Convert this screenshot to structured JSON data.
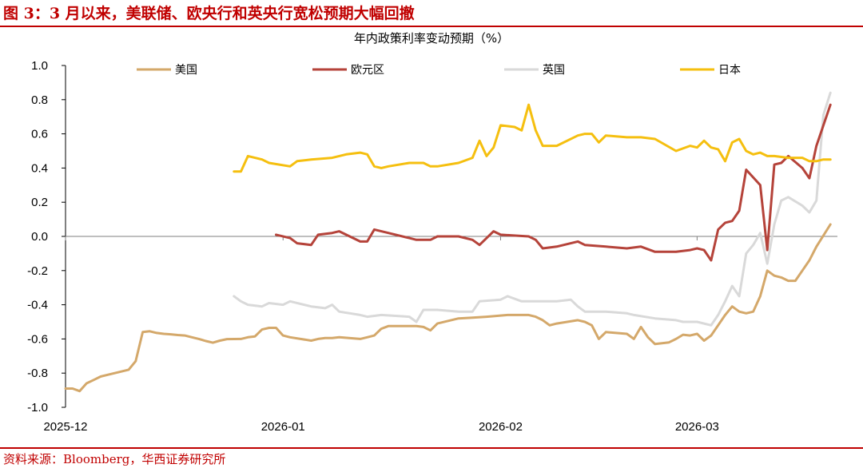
{
  "header": {
    "title": "图 3：3 月以来，美联储、欧央行和英央行宽松预期大幅回撤"
  },
  "footer": {
    "source": "资料来源：Bloomberg，华西证券研究所"
  },
  "chart_data": {
    "type": "line",
    "title": "年内政策利率变动预期（%）",
    "xlabel": "",
    "ylabel": "",
    "ylim": [
      -1.0,
      1.0
    ],
    "yticks": [
      "1.0",
      "0.8",
      "0.6",
      "0.4",
      "0.2",
      "0.0",
      "-0.2",
      "-0.4",
      "-0.6",
      "-0.8",
      "-1.0"
    ],
    "xticks": [
      {
        "label": "2025-12",
        "date": "2025-12-01"
      },
      {
        "label": "2026-01",
        "date": "2026-01-01"
      },
      {
        "label": "2026-02",
        "date": "2026-02-01"
      },
      {
        "label": "2026-03",
        "date": "2026-03-01"
      }
    ],
    "xrange": [
      "2025-12-01",
      "2026-03-21"
    ],
    "grid": false,
    "legend": "top",
    "series": [
      {
        "name": "美国",
        "color": "#d4a86a",
        "points": [
          [
            "2025-12-01",
            -0.89
          ],
          [
            "2025-12-02",
            -0.89
          ],
          [
            "2025-12-03",
            -0.905
          ],
          [
            "2025-12-04",
            -0.86
          ],
          [
            "2025-12-05",
            -0.84
          ],
          [
            "2025-12-06",
            -0.82
          ],
          [
            "2025-12-07",
            -0.81
          ],
          [
            "2025-12-08",
            -0.8
          ],
          [
            "2025-12-09",
            -0.79
          ],
          [
            "2025-12-10",
            -0.78
          ],
          [
            "2025-12-11",
            -0.73
          ],
          [
            "2025-12-12",
            -0.56
          ],
          [
            "2025-12-13",
            -0.555
          ],
          [
            "2025-12-14",
            -0.565
          ],
          [
            "2025-12-15",
            -0.57
          ],
          [
            "2025-12-16",
            -0.573
          ],
          [
            "2025-12-17",
            -0.577
          ],
          [
            "2025-12-18",
            -0.58
          ],
          [
            "2025-12-19",
            -0.59
          ],
          [
            "2025-12-20",
            -0.6
          ],
          [
            "2025-12-21",
            -0.612
          ],
          [
            "2025-12-22",
            -0.622
          ],
          [
            "2025-12-23",
            -0.61
          ],
          [
            "2025-12-24",
            -0.601
          ],
          [
            "2025-12-26",
            -0.6
          ],
          [
            "2025-12-27",
            -0.59
          ],
          [
            "2025-12-28",
            -0.585
          ],
          [
            "2025-12-29",
            -0.545
          ],
          [
            "2025-12-30",
            -0.535
          ],
          [
            "2025-12-31",
            -0.535
          ],
          [
            "2026-01-01",
            -0.58
          ],
          [
            "2026-01-02",
            -0.59
          ],
          [
            "2026-01-05",
            -0.61
          ],
          [
            "2026-01-06",
            -0.6
          ],
          [
            "2026-01-07",
            -0.595
          ],
          [
            "2026-01-08",
            -0.595
          ],
          [
            "2026-01-09",
            -0.59
          ],
          [
            "2026-01-12",
            -0.6
          ],
          [
            "2026-01-13",
            -0.59
          ],
          [
            "2026-01-14",
            -0.58
          ],
          [
            "2026-01-15",
            -0.54
          ],
          [
            "2026-01-16",
            -0.525
          ],
          [
            "2026-01-20",
            -0.525
          ],
          [
            "2026-01-21",
            -0.53
          ],
          [
            "2026-01-22",
            -0.55
          ],
          [
            "2026-01-23",
            -0.51
          ],
          [
            "2026-01-26",
            -0.48
          ],
          [
            "2026-01-28",
            -0.475
          ],
          [
            "2026-01-30",
            -0.47
          ],
          [
            "2026-02-02",
            -0.46
          ],
          [
            "2026-02-05",
            -0.46
          ],
          [
            "2026-02-06",
            -0.47
          ],
          [
            "2026-02-07",
            -0.49
          ],
          [
            "2026-02-08",
            -0.52
          ],
          [
            "2026-02-09",
            -0.51
          ],
          [
            "2026-02-12",
            -0.49
          ],
          [
            "2026-02-13",
            -0.5
          ],
          [
            "2026-02-14",
            -0.52
          ],
          [
            "2026-02-15",
            -0.6
          ],
          [
            "2026-02-16",
            -0.56
          ],
          [
            "2026-02-19",
            -0.57
          ],
          [
            "2026-02-20",
            -0.6
          ],
          [
            "2026-02-21",
            -0.53
          ],
          [
            "2026-02-22",
            -0.59
          ],
          [
            "2026-02-23",
            -0.63
          ],
          [
            "2026-02-24",
            -0.625
          ],
          [
            "2026-02-25",
            -0.62
          ],
          [
            "2026-02-26",
            -0.6
          ],
          [
            "2026-02-27",
            -0.575
          ],
          [
            "2026-02-28",
            -0.58
          ],
          [
            "2026-03-01",
            -0.57
          ],
          [
            "2026-03-02",
            -0.61
          ],
          [
            "2026-03-03",
            -0.58
          ],
          [
            "2026-03-04",
            -0.52
          ],
          [
            "2026-03-05",
            -0.46
          ],
          [
            "2026-03-06",
            -0.41
          ],
          [
            "2026-03-07",
            -0.44
          ],
          [
            "2026-03-08",
            -0.45
          ],
          [
            "2026-03-09",
            -0.44
          ],
          [
            "2026-03-10",
            -0.35
          ],
          [
            "2026-03-11",
            -0.2
          ],
          [
            "2026-03-12",
            -0.23
          ],
          [
            "2026-03-13",
            -0.24
          ],
          [
            "2026-03-14",
            -0.26
          ],
          [
            "2026-03-15",
            -0.26
          ],
          [
            "2026-03-16",
            -0.2
          ],
          [
            "2026-03-17",
            -0.14
          ],
          [
            "2026-03-18",
            -0.06
          ],
          [
            "2026-03-20",
            0.07
          ]
        ]
      },
      {
        "name": "欧元区",
        "color": "#b5433a",
        "points": [
          [
            "2025-12-31",
            0.01
          ],
          [
            "2026-01-02",
            -0.01
          ],
          [
            "2026-01-03",
            -0.04
          ],
          [
            "2026-01-05",
            -0.05
          ],
          [
            "2026-01-06",
            0.01
          ],
          [
            "2026-01-08",
            0.02
          ],
          [
            "2026-01-09",
            0.03
          ],
          [
            "2026-01-12",
            -0.03
          ],
          [
            "2026-01-13",
            -0.03
          ],
          [
            "2026-01-14",
            0.04
          ],
          [
            "2026-01-16",
            0.02
          ],
          [
            "2026-01-19",
            -0.01
          ],
          [
            "2026-01-20",
            -0.02
          ],
          [
            "2026-01-22",
            -0.02
          ],
          [
            "2026-01-23",
            0.0
          ],
          [
            "2026-01-26",
            0.0
          ],
          [
            "2026-01-28",
            -0.02
          ],
          [
            "2026-01-29",
            -0.05
          ],
          [
            "2026-01-31",
            0.03
          ],
          [
            "2026-02-01",
            0.01
          ],
          [
            "2026-02-05",
            0.0
          ],
          [
            "2026-02-06",
            -0.02
          ],
          [
            "2026-02-07",
            -0.07
          ],
          [
            "2026-02-09",
            -0.06
          ],
          [
            "2026-02-10",
            -0.05
          ],
          [
            "2026-02-12",
            -0.03
          ],
          [
            "2026-02-13",
            -0.05
          ],
          [
            "2026-02-16",
            -0.06
          ],
          [
            "2026-02-19",
            -0.07
          ],
          [
            "2026-02-21",
            -0.06
          ],
          [
            "2026-02-23",
            -0.09
          ],
          [
            "2026-02-26",
            -0.09
          ],
          [
            "2026-02-28",
            -0.08
          ],
          [
            "2026-03-01",
            -0.07
          ],
          [
            "2026-03-02",
            -0.08
          ],
          [
            "2026-03-03",
            -0.14
          ],
          [
            "2026-03-04",
            0.04
          ],
          [
            "2026-03-05",
            0.08
          ],
          [
            "2026-03-06",
            0.09
          ],
          [
            "2026-03-07",
            0.15
          ],
          [
            "2026-03-08",
            0.39
          ],
          [
            "2026-03-10",
            0.3
          ],
          [
            "2026-03-11",
            -0.08
          ],
          [
            "2026-03-12",
            0.42
          ],
          [
            "2026-03-13",
            0.43
          ],
          [
            "2026-03-14",
            0.47
          ],
          [
            "2026-03-16",
            0.4
          ],
          [
            "2026-03-17",
            0.34
          ],
          [
            "2026-03-18",
            0.53
          ],
          [
            "2026-03-20",
            0.77
          ]
        ]
      },
      {
        "name": "英国",
        "color": "#d9d9d9",
        "points": [
          [
            "2025-12-25",
            -0.35
          ],
          [
            "2025-12-26",
            -0.38
          ],
          [
            "2025-12-27",
            -0.4
          ],
          [
            "2025-12-29",
            -0.41
          ],
          [
            "2025-12-30",
            -0.39
          ],
          [
            "2026-01-01",
            -0.4
          ],
          [
            "2026-01-02",
            -0.38
          ],
          [
            "2026-01-05",
            -0.41
          ],
          [
            "2026-01-07",
            -0.42
          ],
          [
            "2026-01-08",
            -0.4
          ],
          [
            "2026-01-09",
            -0.44
          ],
          [
            "2026-01-12",
            -0.46
          ],
          [
            "2026-01-13",
            -0.47
          ],
          [
            "2026-01-15",
            -0.46
          ],
          [
            "2026-01-19",
            -0.47
          ],
          [
            "2026-01-20",
            -0.5
          ],
          [
            "2026-01-21",
            -0.43
          ],
          [
            "2026-01-23",
            -0.43
          ],
          [
            "2026-01-26",
            -0.44
          ],
          [
            "2026-01-28",
            -0.44
          ],
          [
            "2026-01-29",
            -0.38
          ],
          [
            "2026-02-01",
            -0.37
          ],
          [
            "2026-02-02",
            -0.35
          ],
          [
            "2026-02-04",
            -0.38
          ],
          [
            "2026-02-07",
            -0.38
          ],
          [
            "2026-02-09",
            -0.38
          ],
          [
            "2026-02-11",
            -0.37
          ],
          [
            "2026-02-12",
            -0.41
          ],
          [
            "2026-02-13",
            -0.44
          ],
          [
            "2026-02-16",
            -0.44
          ],
          [
            "2026-02-19",
            -0.45
          ],
          [
            "2026-02-20",
            -0.46
          ],
          [
            "2026-02-23",
            -0.48
          ],
          [
            "2026-02-26",
            -0.49
          ],
          [
            "2026-02-27",
            -0.5
          ],
          [
            "2026-03-01",
            -0.5
          ],
          [
            "2026-03-03",
            -0.52
          ],
          [
            "2026-03-04",
            -0.46
          ],
          [
            "2026-03-05",
            -0.38
          ],
          [
            "2026-03-06",
            -0.29
          ],
          [
            "2026-03-07",
            -0.35
          ],
          [
            "2026-03-08",
            -0.1
          ],
          [
            "2026-03-09",
            -0.05
          ],
          [
            "2026-03-10",
            0.02
          ],
          [
            "2026-03-11",
            -0.16
          ],
          [
            "2026-03-12",
            0.07
          ],
          [
            "2026-03-13",
            0.21
          ],
          [
            "2026-03-14",
            0.23
          ],
          [
            "2026-03-16",
            0.18
          ],
          [
            "2026-03-17",
            0.14
          ],
          [
            "2026-03-18",
            0.21
          ],
          [
            "2026-03-19",
            0.71
          ],
          [
            "2026-03-20",
            0.84
          ]
        ]
      },
      {
        "name": "日本",
        "color": "#f5bf0f",
        "points": [
          [
            "2025-12-25",
            0.38
          ],
          [
            "2025-12-26",
            0.38
          ],
          [
            "2025-12-27",
            0.47
          ],
          [
            "2025-12-29",
            0.45
          ],
          [
            "2025-12-30",
            0.43
          ],
          [
            "2026-01-02",
            0.41
          ],
          [
            "2026-01-03",
            0.44
          ],
          [
            "2026-01-05",
            0.45
          ],
          [
            "2026-01-08",
            0.46
          ],
          [
            "2026-01-10",
            0.48
          ],
          [
            "2026-01-12",
            0.49
          ],
          [
            "2026-01-13",
            0.48
          ],
          [
            "2026-01-14",
            0.41
          ],
          [
            "2026-01-15",
            0.4
          ],
          [
            "2026-01-16",
            0.41
          ],
          [
            "2026-01-19",
            0.43
          ],
          [
            "2026-01-21",
            0.43
          ],
          [
            "2026-01-22",
            0.41
          ],
          [
            "2026-01-23",
            0.41
          ],
          [
            "2026-01-26",
            0.43
          ],
          [
            "2026-01-28",
            0.46
          ],
          [
            "2026-01-29",
            0.56
          ],
          [
            "2026-01-30",
            0.47
          ],
          [
            "2026-01-31",
            0.52
          ],
          [
            "2026-02-01",
            0.65
          ],
          [
            "2026-02-03",
            0.64
          ],
          [
            "2026-02-04",
            0.62
          ],
          [
            "2026-02-05",
            0.77
          ],
          [
            "2026-02-06",
            0.62
          ],
          [
            "2026-02-07",
            0.53
          ],
          [
            "2026-02-09",
            0.53
          ],
          [
            "2026-02-12",
            0.59
          ],
          [
            "2026-02-13",
            0.6
          ],
          [
            "2026-02-14",
            0.6
          ],
          [
            "2026-02-15",
            0.55
          ],
          [
            "2026-02-16",
            0.59
          ],
          [
            "2026-02-19",
            0.58
          ],
          [
            "2026-02-21",
            0.58
          ],
          [
            "2026-02-23",
            0.57
          ],
          [
            "2026-02-26",
            0.5
          ],
          [
            "2026-02-28",
            0.53
          ],
          [
            "2026-03-01",
            0.52
          ],
          [
            "2026-03-02",
            0.56
          ],
          [
            "2026-03-03",
            0.52
          ],
          [
            "2026-03-04",
            0.51
          ],
          [
            "2026-03-05",
            0.44
          ],
          [
            "2026-03-06",
            0.55
          ],
          [
            "2026-03-07",
            0.57
          ],
          [
            "2026-03-08",
            0.5
          ],
          [
            "2026-03-09",
            0.48
          ],
          [
            "2026-03-10",
            0.49
          ],
          [
            "2026-03-11",
            0.47
          ],
          [
            "2026-03-12",
            0.47
          ],
          [
            "2026-03-14",
            0.46
          ],
          [
            "2026-03-16",
            0.46
          ],
          [
            "2026-03-17",
            0.44
          ],
          [
            "2026-03-18",
            0.44
          ],
          [
            "2026-03-19",
            0.45
          ],
          [
            "2026-03-20",
            0.45
          ]
        ]
      }
    ]
  }
}
